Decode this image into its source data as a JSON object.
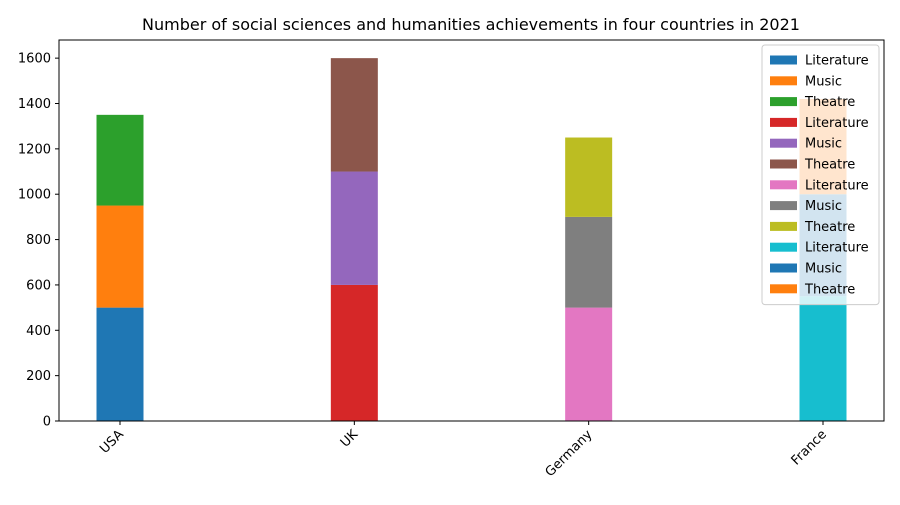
{
  "chart_data": {
    "type": "bar",
    "title": "Number of social sciences and humanities achievements in four countries in 2021",
    "xlabel": "",
    "ylabel": "",
    "categories": [
      "USA",
      "UK",
      "Germany",
      "France"
    ],
    "ylim": [
      0,
      1680
    ],
    "yticks": [
      0,
      200,
      400,
      600,
      800,
      1000,
      1200,
      1400,
      1600
    ],
    "grid": false,
    "legend_position": "top-right",
    "stacks": [
      {
        "category": "USA",
        "segments": [
          {
            "name": "Literature",
            "value": 500,
            "color": "#1f77b4"
          },
          {
            "name": "Music",
            "value": 450,
            "color": "#ff7f0e"
          },
          {
            "name": "Theatre",
            "value": 400,
            "color": "#2ca02c"
          }
        ]
      },
      {
        "category": "UK",
        "segments": [
          {
            "name": "Literature",
            "value": 600,
            "color": "#d62728"
          },
          {
            "name": "Music",
            "value": 500,
            "color": "#9467bd"
          },
          {
            "name": "Theatre",
            "value": 500,
            "color": "#8c564b"
          }
        ]
      },
      {
        "category": "Germany",
        "segments": [
          {
            "name": "Literature",
            "value": 500,
            "color": "#e377c2"
          },
          {
            "name": "Music",
            "value": 400,
            "color": "#7f7f7f"
          },
          {
            "name": "Theatre",
            "value": 350,
            "color": "#bcbd22"
          }
        ]
      },
      {
        "category": "France",
        "segments": [
          {
            "name": "Literature",
            "value": 550,
            "color": "#17becf"
          },
          {
            "name": "Music",
            "value": 450,
            "color": "#1f77b4"
          },
          {
            "name": "Theatre",
            "value": 420,
            "color": "#ff7f0e"
          }
        ]
      }
    ],
    "legend": [
      {
        "label": "Literature",
        "color": "#1f77b4"
      },
      {
        "label": "Music",
        "color": "#ff7f0e"
      },
      {
        "label": "Theatre",
        "color": "#2ca02c"
      },
      {
        "label": "Literature",
        "color": "#d62728"
      },
      {
        "label": "Music",
        "color": "#9467bd"
      },
      {
        "label": "Theatre",
        "color": "#8c564b"
      },
      {
        "label": "Literature",
        "color": "#e377c2"
      },
      {
        "label": "Music",
        "color": "#7f7f7f"
      },
      {
        "label": "Theatre",
        "color": "#bcbd22"
      },
      {
        "label": "Literature",
        "color": "#17becf"
      },
      {
        "label": "Music",
        "color": "#1f77b4"
      },
      {
        "label": "Theatre",
        "color": "#ff7f0e"
      }
    ]
  }
}
